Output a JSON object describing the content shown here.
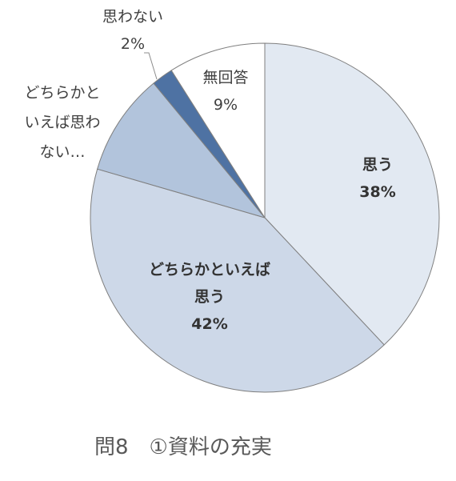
{
  "chart_data": {
    "type": "pie",
    "title": "問8　①資料の充実",
    "start_angle_deg": 0,
    "direction": "clockwise",
    "slices": [
      {
        "label": "思う",
        "display_lines": [
          "思う"
        ],
        "percent_label": "38%",
        "value": 38,
        "color": "#e2e9f2"
      },
      {
        "label": "どちらかといえば思う",
        "display_lines": [
          "どちらかといえば",
          "思う"
        ],
        "percent_label": "42%",
        "value": 41.5,
        "color": "#cdd8e8"
      },
      {
        "label": "どちらかといえば思わない…",
        "display_lines": [
          "どちらかと",
          "いえば思わ",
          "ない…"
        ],
        "percent_label": "",
        "value": 9.5,
        "color": "#b2c4dc"
      },
      {
        "label": "思わない",
        "display_lines": [
          "思わない"
        ],
        "percent_label": "2%",
        "value": 2,
        "color": "#4e72a3"
      },
      {
        "label": "無回答",
        "display_lines": [
          "無回答"
        ],
        "percent_label": "9%",
        "value": 9,
        "color": "#ffffff"
      }
    ],
    "legend": "none"
  }
}
